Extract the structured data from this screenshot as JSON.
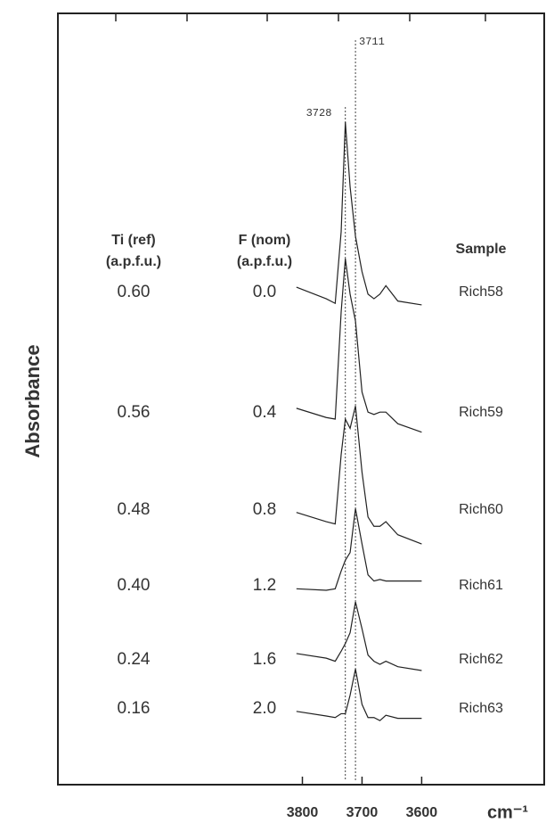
{
  "chart_data": {
    "type": "spectra",
    "x_label": "cm⁻¹",
    "y_label": "Absorbance",
    "xlim": [
      4210,
      3393
    ],
    "xticks": [
      3800,
      3700,
      3600
    ],
    "ylim": [
      0,
      100
    ],
    "peaks": [
      3728,
      3711
    ],
    "column_headers": [
      [
        "Ti (ref)",
        "(a.p.f.u.)"
      ],
      [
        "F  (nom)",
        "(a.p.f.u.)"
      ],
      [
        "Sample"
      ]
    ],
    "x": [
      3810,
      3760,
      3745,
      3735,
      3728,
      3720,
      3711,
      3700,
      3690,
      3680,
      3670,
      3660,
      3640,
      3600
    ],
    "series": [
      {
        "name": "Rich58",
        "ti": "0.60",
        "f": "0.0",
        "color": "#222222",
        "values": [
          64.5,
          63.0,
          62.4,
          71.7,
          85.9,
          77.5,
          71.1,
          66.5,
          63.6,
          63.0,
          63.6,
          64.7,
          62.7,
          62.2
        ]
      },
      {
        "name": "Rich59",
        "ti": "0.56",
        "f": "0.4",
        "color": "#222222",
        "values": [
          48.8,
          47.6,
          47.4,
          61.3,
          68.2,
          63.6,
          60.1,
          50.9,
          48.3,
          48.0,
          48.3,
          48.3,
          46.8,
          45.7
        ]
      },
      {
        "name": "Rich60",
        "ti": "0.48",
        "f": "0.8",
        "color": "#222222",
        "values": [
          35.3,
          34.1,
          33.8,
          42.8,
          47.4,
          46.2,
          49.1,
          40.5,
          34.7,
          33.5,
          33.5,
          34.1,
          32.4,
          31.2
        ]
      },
      {
        "name": "Rich61",
        "ti": "0.40",
        "f": "1.2",
        "color": "#222222",
        "values": [
          25.4,
          25.2,
          25.4,
          27.7,
          29.1,
          30.1,
          35.8,
          31.2,
          27.2,
          26.4,
          26.6,
          26.4,
          26.4,
          26.4
        ]
      },
      {
        "name": "Rich62",
        "ti": "0.24",
        "f": "1.6",
        "color": "#222222",
        "values": [
          17.0,
          16.4,
          16.0,
          17.3,
          18.3,
          19.7,
          23.7,
          20.2,
          16.8,
          16.0,
          15.6,
          16.0,
          15.3,
          14.8
        ]
      },
      {
        "name": "Rich63",
        "ti": "0.16",
        "f": "2.0",
        "color": "#222222",
        "values": [
          9.5,
          8.9,
          8.7,
          9.2,
          9.2,
          11.6,
          15.0,
          10.4,
          8.7,
          8.7,
          8.3,
          9.0,
          8.6,
          8.6
        ]
      }
    ]
  }
}
